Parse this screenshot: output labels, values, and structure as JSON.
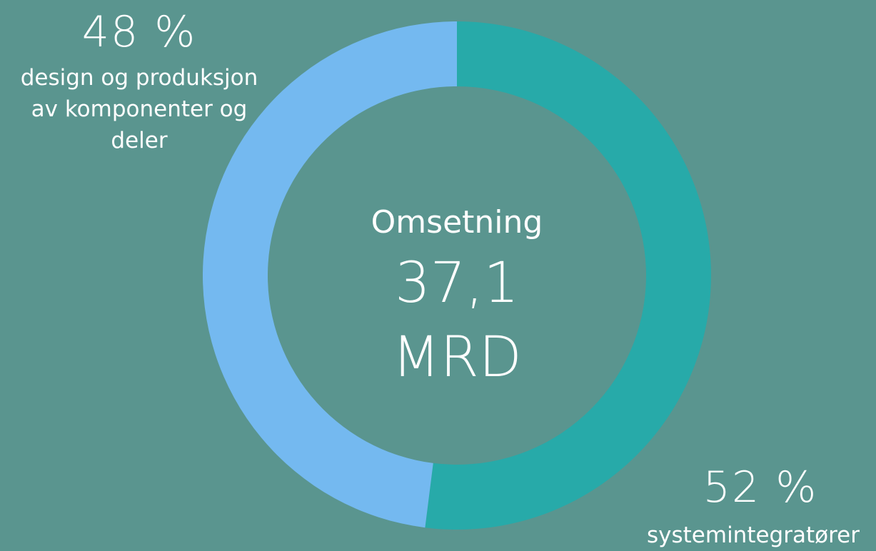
{
  "chart_data": {
    "type": "donut",
    "categories": [
      "systemintegratører",
      "design og produksjon av komponenter og deler"
    ],
    "values": [
      52,
      48
    ],
    "value_labels": [
      "52 %",
      "48 %"
    ],
    "colors": [
      "#27aaa9",
      "#74b9f0"
    ],
    "center_text": [
      "Omsetning",
      "37,1",
      "MRD"
    ]
  }
}
